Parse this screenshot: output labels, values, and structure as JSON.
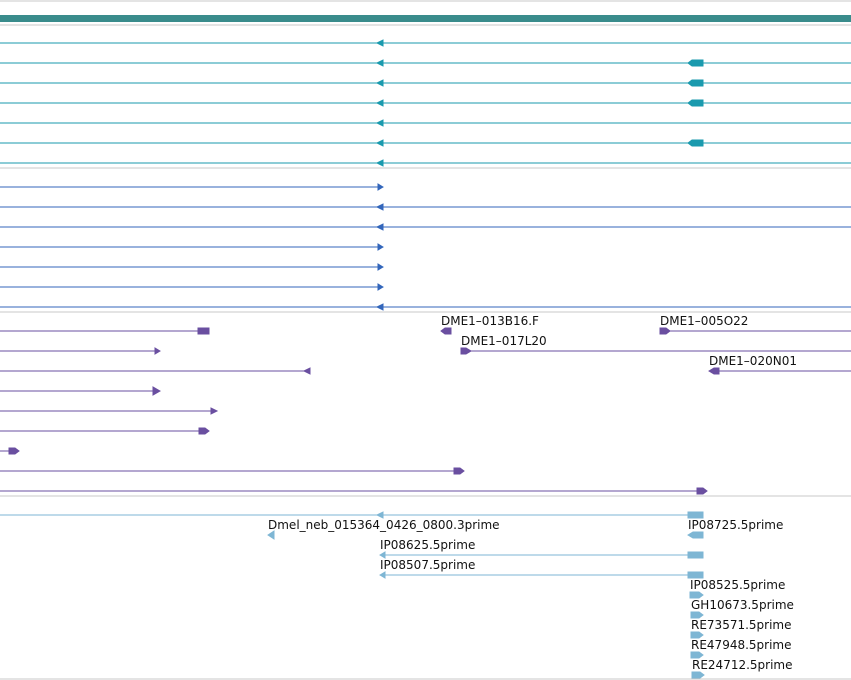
{
  "colors": {
    "track_gene": "#3a8c8c",
    "transcript": "#1a9aae",
    "blue": "#3366bb",
    "purple": "#6a4fa0",
    "light_blue": "#7eb6d4",
    "separator": "#c8c8c8"
  },
  "tracks": [
    {
      "name": "transcripts",
      "features": [
        {
          "strand": "-",
          "start": 0,
          "end": 851,
          "label": ""
        },
        {
          "strand": "-",
          "start": 0,
          "end": 851,
          "label": ""
        },
        {
          "strand": "-",
          "start": 0,
          "end": 851,
          "label": ""
        },
        {
          "strand": "-",
          "start": 0,
          "end": 851,
          "label": ""
        },
        {
          "strand": "-",
          "start": 0,
          "end": 851,
          "label": ""
        },
        {
          "strand": "-",
          "start": 0,
          "end": 851,
          "label": ""
        },
        {
          "strand": "-",
          "start": 0,
          "end": 851,
          "label": ""
        }
      ]
    },
    {
      "name": "blue-alignments",
      "features": [
        {
          "strand": "+",
          "start": 0,
          "end": 382,
          "label": ""
        },
        {
          "strand": "-",
          "start": 0,
          "end": 851,
          "label": ""
        },
        {
          "strand": "-",
          "start": 0,
          "end": 851,
          "label": ""
        },
        {
          "strand": "+",
          "start": 0,
          "end": 382,
          "label": ""
        },
        {
          "strand": "+",
          "start": 0,
          "end": 382,
          "label": ""
        },
        {
          "strand": "+",
          "start": 0,
          "end": 382,
          "label": ""
        },
        {
          "strand": "-",
          "start": 0,
          "end": 851,
          "label": ""
        }
      ]
    },
    {
      "name": "purple-clones",
      "features": [
        {
          "strand": "+",
          "start": 0,
          "end": 209,
          "label": ""
        },
        {
          "strand": "-",
          "start": 441,
          "end": 451,
          "label": "DME1–013B16.F"
        },
        {
          "strand": "-",
          "start": 660,
          "end": 851,
          "label": "DME1–005O22"
        },
        {
          "strand": "+",
          "start": 0,
          "end": 160,
          "label": ""
        },
        {
          "strand": "-",
          "start": 461,
          "end": 851,
          "label": "DME1–017L20"
        },
        {
          "strand": "-",
          "start": 0,
          "end": 310,
          "label": ""
        },
        {
          "strand": "-",
          "start": 709,
          "end": 851,
          "label": "DME1–020N01"
        },
        {
          "strand": "+",
          "start": 0,
          "end": 160,
          "label": ""
        },
        {
          "strand": "+",
          "start": 0,
          "end": 217,
          "label": ""
        },
        {
          "strand": "+",
          "start": 0,
          "end": 209,
          "label": ""
        },
        {
          "strand": "+",
          "start": 0,
          "end": 19,
          "label": ""
        },
        {
          "strand": "+",
          "start": 0,
          "end": 464,
          "label": ""
        },
        {
          "strand": "+",
          "start": 0,
          "end": 707,
          "label": ""
        }
      ]
    },
    {
      "name": "light-blue-ests",
      "features": [
        {
          "strand": "-",
          "start": 0,
          "end": 703,
          "label": ""
        },
        {
          "strand": "-",
          "start": 268,
          "end": 274,
          "label": "Dmel_neb_015364_0426_0800.3prime"
        },
        {
          "strand": "-",
          "start": 688,
          "end": 703,
          "label": "IP08725.5prime"
        },
        {
          "strand": "-",
          "start": 380,
          "end": 703,
          "label": "IP08625.5prime"
        },
        {
          "strand": "-",
          "start": 380,
          "end": 703,
          "label": "IP08507.5prime"
        },
        {
          "strand": "+",
          "start": 690,
          "end": 703,
          "label": "IP08525.5prime"
        },
        {
          "strand": "+",
          "start": 691,
          "end": 703,
          "label": "GH10673.5prime"
        },
        {
          "strand": "+",
          "start": 691,
          "end": 703,
          "label": "RE73571.5prime"
        },
        {
          "strand": "+",
          "start": 691,
          "end": 703,
          "label": "RE47948.5prime"
        },
        {
          "strand": "+",
          "start": 692,
          "end": 704,
          "label": "RE24712.5prime"
        }
      ]
    }
  ]
}
